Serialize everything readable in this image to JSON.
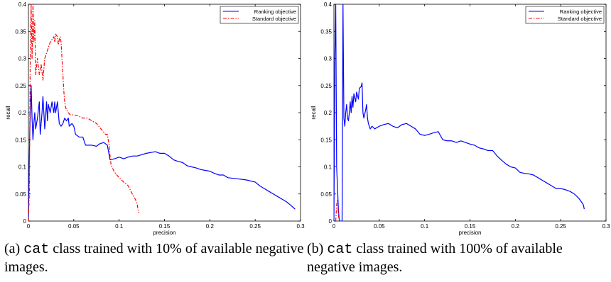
{
  "chart_data": [
    {
      "type": "line",
      "xlabel": "precision",
      "ylabel": "recall",
      "xlim": [
        0,
        0.3
      ],
      "ylim": [
        0,
        0.4
      ],
      "xticks": [
        "0",
        "0.05",
        "0.1",
        "0.15",
        "0.2",
        "0.25",
        "0.3"
      ],
      "yticks": [
        "0",
        "0.05",
        "0.1",
        "0.15",
        "0.2",
        "0.25",
        "0.3",
        "0.35",
        "0.4"
      ],
      "legend": "top-right",
      "grid": false,
      "series": [
        {
          "name": "Ranking objective",
          "color": "#0000ff",
          "style": "solid",
          "points": [
            [
              0.0,
              0.0
            ],
            [
              0.001,
              0.12
            ],
            [
              0.002,
              0.2
            ],
            [
              0.003,
              0.25
            ],
            [
              0.004,
              0.19
            ],
            [
              0.005,
              0.15
            ],
            [
              0.006,
              0.18
            ],
            [
              0.007,
              0.2
            ],
            [
              0.008,
              0.17
            ],
            [
              0.01,
              0.19
            ],
            [
              0.012,
              0.22
            ],
            [
              0.013,
              0.16
            ],
            [
              0.015,
              0.2
            ],
            [
              0.016,
              0.23
            ],
            [
              0.018,
              0.17
            ],
            [
              0.02,
              0.22
            ],
            [
              0.021,
              0.185
            ],
            [
              0.022,
              0.215
            ],
            [
              0.024,
              0.2
            ],
            [
              0.026,
              0.22
            ],
            [
              0.028,
              0.2
            ],
            [
              0.029,
              0.22
            ],
            [
              0.03,
              0.2
            ],
            [
              0.032,
              0.22
            ],
            [
              0.034,
              0.18
            ],
            [
              0.036,
              0.175
            ],
            [
              0.038,
              0.18
            ],
            [
              0.04,
              0.19
            ],
            [
              0.042,
              0.185
            ],
            [
              0.044,
              0.19
            ],
            [
              0.045,
              0.175
            ],
            [
              0.048,
              0.18
            ],
            [
              0.05,
              0.175
            ],
            [
              0.052,
              0.16
            ],
            [
              0.056,
              0.155
            ],
            [
              0.06,
              0.155
            ],
            [
              0.063,
              0.14
            ],
            [
              0.07,
              0.14
            ],
            [
              0.075,
              0.138
            ],
            [
              0.078,
              0.142
            ],
            [
              0.083,
              0.145
            ],
            [
              0.087,
              0.14
            ],
            [
              0.09,
              0.113
            ],
            [
              0.095,
              0.115
            ],
            [
              0.1,
              0.118
            ],
            [
              0.105,
              0.115
            ],
            [
              0.11,
              0.118
            ],
            [
              0.115,
              0.12
            ],
            [
              0.12,
              0.12
            ],
            [
              0.13,
              0.125
            ],
            [
              0.14,
              0.128
            ],
            [
              0.145,
              0.125
            ],
            [
              0.15,
              0.125
            ],
            [
              0.155,
              0.12
            ],
            [
              0.16,
              0.113
            ],
            [
              0.165,
              0.11
            ],
            [
              0.17,
              0.108
            ],
            [
              0.175,
              0.102
            ],
            [
              0.18,
              0.1
            ],
            [
              0.185,
              0.098
            ],
            [
              0.19,
              0.095
            ],
            [
              0.2,
              0.092
            ],
            [
              0.205,
              0.088
            ],
            [
              0.21,
              0.085
            ],
            [
              0.215,
              0.085
            ],
            [
              0.22,
              0.08
            ],
            [
              0.23,
              0.078
            ],
            [
              0.24,
              0.076
            ],
            [
              0.25,
              0.072
            ],
            [
              0.255,
              0.065
            ],
            [
              0.26,
              0.06
            ],
            [
              0.265,
              0.055
            ],
            [
              0.27,
              0.05
            ],
            [
              0.275,
              0.045
            ],
            [
              0.28,
              0.04
            ],
            [
              0.285,
              0.035
            ],
            [
              0.29,
              0.028
            ],
            [
              0.292,
              0.025
            ],
            [
              0.294,
              0.022
            ]
          ]
        },
        {
          "name": "Standard objective",
          "color": "#ff0000",
          "style": "dashdot",
          "points": [
            [
              0.0,
              0.0
            ],
            [
              0.001,
              0.05
            ],
            [
              0.002,
              0.3
            ],
            [
              0.003,
              0.4
            ],
            [
              0.004,
              0.3
            ],
            [
              0.005,
              0.4
            ],
            [
              0.006,
              0.33
            ],
            [
              0.007,
              0.37
            ],
            [
              0.008,
              0.27
            ],
            [
              0.01,
              0.3
            ],
            [
              0.012,
              0.27
            ],
            [
              0.014,
              0.29
            ],
            [
              0.016,
              0.26
            ],
            [
              0.018,
              0.3
            ],
            [
              0.02,
              0.31
            ],
            [
              0.022,
              0.32
            ],
            [
              0.024,
              0.33
            ],
            [
              0.026,
              0.335
            ],
            [
              0.028,
              0.34
            ],
            [
              0.029,
              0.33
            ],
            [
              0.03,
              0.345
            ],
            [
              0.032,
              0.34
            ],
            [
              0.033,
              0.325
            ],
            [
              0.034,
              0.335
            ],
            [
              0.035,
              0.34
            ],
            [
              0.036,
              0.33
            ],
            [
              0.037,
              0.3
            ],
            [
              0.038,
              0.27
            ],
            [
              0.039,
              0.24
            ],
            [
              0.04,
              0.22
            ],
            [
              0.041,
              0.21
            ],
            [
              0.042,
              0.205
            ],
            [
              0.044,
              0.2
            ],
            [
              0.046,
              0.196
            ],
            [
              0.05,
              0.196
            ],
            [
              0.055,
              0.194
            ],
            [
              0.06,
              0.19
            ],
            [
              0.065,
              0.19
            ],
            [
              0.07,
              0.185
            ],
            [
              0.075,
              0.18
            ],
            [
              0.08,
              0.17
            ],
            [
              0.085,
              0.16
            ],
            [
              0.087,
              0.16
            ],
            [
              0.089,
              0.14
            ],
            [
              0.09,
              0.12
            ],
            [
              0.091,
              0.105
            ],
            [
              0.092,
              0.1
            ],
            [
              0.095,
              0.09
            ],
            [
              0.1,
              0.08
            ],
            [
              0.105,
              0.072
            ],
            [
              0.11,
              0.065
            ],
            [
              0.113,
              0.055
            ],
            [
              0.116,
              0.045
            ],
            [
              0.118,
              0.04
            ],
            [
              0.12,
              0.03
            ],
            [
              0.121,
              0.02
            ],
            [
              0.122,
              0.015
            ]
          ]
        }
      ]
    },
    {
      "type": "line",
      "xlabel": "precision",
      "ylabel": "recall",
      "xlim": [
        0,
        0.3
      ],
      "ylim": [
        0,
        0.4
      ],
      "xticks": [
        "0",
        "0.05",
        "0.1",
        "0.15",
        "0.2",
        "0.25",
        "0.3"
      ],
      "yticks": [
        "0",
        "0.05",
        "0.1",
        "0.15",
        "0.2",
        "0.25",
        "0.3",
        "0.35",
        "0.4"
      ],
      "legend": "top-right",
      "grid": false,
      "series": [
        {
          "name": "Ranking objective",
          "color": "#0000ff",
          "style": "solid",
          "points": [
            [
              0.0,
              0.0
            ],
            [
              0.001,
              0.3
            ],
            [
              0.002,
              0.4
            ],
            [
              0.003,
              0.1
            ],
            [
              0.005,
              0.02
            ],
            [
              0.006,
              0.0
            ],
            [
              0.009,
              0.0
            ],
            [
              0.01,
              0.4
            ],
            [
              0.011,
              0.19
            ],
            [
              0.012,
              0.175
            ],
            [
              0.013,
              0.2
            ],
            [
              0.014,
              0.215
            ],
            [
              0.015,
              0.19
            ],
            [
              0.016,
              0.185
            ],
            [
              0.017,
              0.2
            ],
            [
              0.018,
              0.22
            ],
            [
              0.019,
              0.2
            ],
            [
              0.02,
              0.23
            ],
            [
              0.021,
              0.21
            ],
            [
              0.022,
              0.235
            ],
            [
              0.024,
              0.22
            ],
            [
              0.025,
              0.238
            ],
            [
              0.027,
              0.225
            ],
            [
              0.028,
              0.245
            ],
            [
              0.03,
              0.248
            ],
            [
              0.031,
              0.255
            ],
            [
              0.032,
              0.2
            ],
            [
              0.033,
              0.19
            ],
            [
              0.035,
              0.205
            ],
            [
              0.036,
              0.215
            ],
            [
              0.037,
              0.19
            ],
            [
              0.038,
              0.18
            ],
            [
              0.04,
              0.17
            ],
            [
              0.042,
              0.175
            ],
            [
              0.045,
              0.17
            ],
            [
              0.05,
              0.175
            ],
            [
              0.055,
              0.178
            ],
            [
              0.06,
              0.18
            ],
            [
              0.065,
              0.175
            ],
            [
              0.07,
              0.172
            ],
            [
              0.075,
              0.178
            ],
            [
              0.08,
              0.18
            ],
            [
              0.085,
              0.175
            ],
            [
              0.09,
              0.17
            ],
            [
              0.095,
              0.16
            ],
            [
              0.1,
              0.158
            ],
            [
              0.105,
              0.16
            ],
            [
              0.11,
              0.163
            ],
            [
              0.115,
              0.165
            ],
            [
              0.12,
              0.15
            ],
            [
              0.125,
              0.148
            ],
            [
              0.13,
              0.148
            ],
            [
              0.135,
              0.145
            ],
            [
              0.14,
              0.148
            ],
            [
              0.145,
              0.145
            ],
            [
              0.15,
              0.142
            ],
            [
              0.155,
              0.14
            ],
            [
              0.16,
              0.135
            ],
            [
              0.165,
              0.133
            ],
            [
              0.17,
              0.13
            ],
            [
              0.175,
              0.13
            ],
            [
              0.18,
              0.12
            ],
            [
              0.185,
              0.112
            ],
            [
              0.19,
              0.105
            ],
            [
              0.195,
              0.1
            ],
            [
              0.2,
              0.098
            ],
            [
              0.205,
              0.09
            ],
            [
              0.21,
              0.088
            ],
            [
              0.215,
              0.087
            ],
            [
              0.22,
              0.085
            ],
            [
              0.225,
              0.08
            ],
            [
              0.23,
              0.075
            ],
            [
              0.235,
              0.07
            ],
            [
              0.24,
              0.065
            ],
            [
              0.245,
              0.06
            ],
            [
              0.25,
              0.06
            ],
            [
              0.255,
              0.058
            ],
            [
              0.26,
              0.055
            ],
            [
              0.265,
              0.05
            ],
            [
              0.27,
              0.042
            ],
            [
              0.273,
              0.035
            ],
            [
              0.275,
              0.03
            ],
            [
              0.276,
              0.022
            ]
          ]
        },
        {
          "name": "Standard objective",
          "color": "#ff0000",
          "style": "dashdot",
          "points": [
            [
              0.002,
              0.0
            ],
            [
              0.003,
              0.03
            ],
            [
              0.004,
              0.04
            ],
            [
              0.005,
              0.01
            ],
            [
              0.006,
              0.0
            ]
          ]
        }
      ]
    }
  ],
  "captions": {
    "a": {
      "label": "(a)",
      "class_name": "cat",
      "text": "class trained with 10% of available negative images."
    },
    "b": {
      "label": "(b)",
      "class_name": "cat",
      "text": "class trained with 100% of available negative images."
    }
  }
}
